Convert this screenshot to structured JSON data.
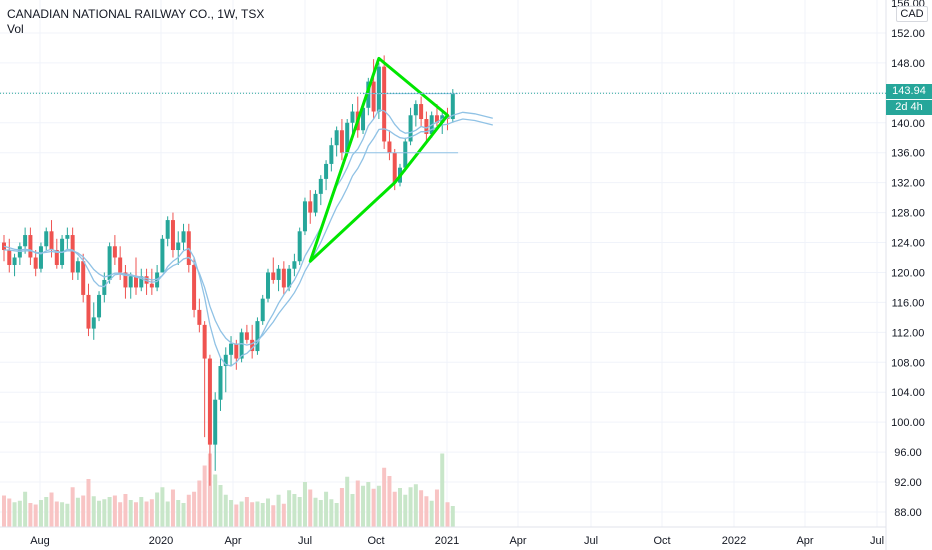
{
  "header": {
    "title": "CANADIAN NATIONAL RAILWAY CO., 1W, TSX",
    "volume_label": "Vol"
  },
  "price_scale": {
    "currency": "CAD",
    "last_price_label": "143.94",
    "countdown_label": "2d 4h",
    "top_label": "156.00"
  },
  "colors": {
    "up": "#26a69a",
    "down": "#ef5350",
    "vol_up": "#c8e6c9",
    "vol_down": "#f8c4c4",
    "ma": "#90c2e5",
    "pattern": "#00e600",
    "grid": "#f0f3fa",
    "price_line": "#26a69a"
  },
  "chart_data": {
    "type": "candlestick",
    "title": "CANADIAN NATIONAL RAILWAY CO., 1W, TSX",
    "y_axis": {
      "ticks": [
        "88.00",
        "92.00",
        "96.00",
        "100.00",
        "104.00",
        "108.00",
        "112.00",
        "116.00",
        "120.00",
        "124.00",
        "128.00",
        "132.00",
        "136.00",
        "140.00",
        "144.00",
        "148.00",
        "152.00"
      ],
      "range": [
        87,
        157
      ]
    },
    "x_axis": {
      "ticks": [
        "Aug",
        "2020",
        "Apr",
        "Jul",
        "Oct",
        "2021",
        "Apr",
        "Jul",
        "Oct",
        "2022",
        "Apr",
        "Jul"
      ]
    },
    "ohlc": [
      [
        124.0,
        125.0,
        121.5,
        123.0
      ],
      [
        123.0,
        124.5,
        120.0,
        121.0
      ],
      [
        121.0,
        122.5,
        119.5,
        122.0
      ],
      [
        122.0,
        124.0,
        121.0,
        123.5
      ],
      [
        123.5,
        126.0,
        122.5,
        125.0
      ],
      [
        125.0,
        126.0,
        121.0,
        122.0
      ],
      [
        122.0,
        123.0,
        119.5,
        120.5
      ],
      [
        120.5,
        124.0,
        120.0,
        123.5
      ],
      [
        123.5,
        126.0,
        123.0,
        125.5
      ],
      [
        125.5,
        127.0,
        122.0,
        123.0
      ],
      [
        123.0,
        124.5,
        120.5,
        121.0
      ],
      [
        121.0,
        125.0,
        120.5,
        124.5
      ],
      [
        124.5,
        126.0,
        123.0,
        125.0
      ],
      [
        125.0,
        126.0,
        119.0,
        120.0
      ],
      [
        120.0,
        122.0,
        119.0,
        121.5
      ],
      [
        121.5,
        122.5,
        116.0,
        117.0
      ],
      [
        117.0,
        118.5,
        111.5,
        112.5
      ],
      [
        112.5,
        116.0,
        111.0,
        114.0
      ],
      [
        114.0,
        117.5,
        113.5,
        117.0
      ],
      [
        117.0,
        120.0,
        116.0,
        119.0
      ],
      [
        119.0,
        124.0,
        118.5,
        123.5
      ],
      [
        123.5,
        125.0,
        121.0,
        122.0
      ],
      [
        122.0,
        123.5,
        119.0,
        120.0
      ],
      [
        120.0,
        121.0,
        116.5,
        118.0
      ],
      [
        118.0,
        120.0,
        116.5,
        119.5
      ],
      [
        119.5,
        122.0,
        117.0,
        118.0
      ],
      [
        118.0,
        120.5,
        117.5,
        119.5
      ],
      [
        119.5,
        120.5,
        117.0,
        118.5
      ],
      [
        118.5,
        120.5,
        117.0,
        118.0
      ],
      [
        118.0,
        121.0,
        117.5,
        120.0
      ],
      [
        120.0,
        125.0,
        120.0,
        124.5
      ],
      [
        124.5,
        127.5,
        123.5,
        127.0
      ],
      [
        127.0,
        128.0,
        122.0,
        123.0
      ],
      [
        123.0,
        125.5,
        121.0,
        124.0
      ],
      [
        124.0,
        126.5,
        123.0,
        125.5
      ],
      [
        125.5,
        126.5,
        120.0,
        121.0
      ],
      [
        121.0,
        122.0,
        114.0,
        115.0
      ],
      [
        115.0,
        116.5,
        112.0,
        113.0
      ],
      [
        113.0,
        113.5,
        98.0,
        108.5
      ],
      [
        108.5,
        109.0,
        91.5,
        97.0
      ],
      [
        97.0,
        104.0,
        93.5,
        103.0
      ],
      [
        103.0,
        108.5,
        101.5,
        107.5
      ],
      [
        107.5,
        110.0,
        104.0,
        109.0
      ],
      [
        109.0,
        111.5,
        107.5,
        110.5
      ],
      [
        110.5,
        111.0,
        107.0,
        108.5
      ],
      [
        108.5,
        112.5,
        108.0,
        112.0
      ],
      [
        112.0,
        113.0,
        110.5,
        111.0
      ],
      [
        111.0,
        113.0,
        108.5,
        109.5
      ],
      [
        109.5,
        114.0,
        109.0,
        113.5
      ],
      [
        113.5,
        117.0,
        113.0,
        116.5
      ],
      [
        116.5,
        120.5,
        116.0,
        120.0
      ],
      [
        120.0,
        122.0,
        118.5,
        119.0
      ],
      [
        119.0,
        121.0,
        117.5,
        120.5
      ],
      [
        120.5,
        121.5,
        117.0,
        118.0
      ],
      [
        118.0,
        121.0,
        117.5,
        120.5
      ],
      [
        120.5,
        122.5,
        119.5,
        121.5
      ],
      [
        121.5,
        126.0,
        121.0,
        125.5
      ],
      [
        125.5,
        130.0,
        125.0,
        129.5
      ],
      [
        129.5,
        131.0,
        126.5,
        128.0
      ],
      [
        128.0,
        131.0,
        127.5,
        130.5
      ],
      [
        130.5,
        133.0,
        129.0,
        132.5
      ],
      [
        132.5,
        135.0,
        131.0,
        134.5
      ],
      [
        134.5,
        138.0,
        133.5,
        137.0
      ],
      [
        137.0,
        139.5,
        135.5,
        139.0
      ],
      [
        139.0,
        140.5,
        135.0,
        136.0
      ],
      [
        136.0,
        140.5,
        135.5,
        140.0
      ],
      [
        140.0,
        142.5,
        138.5,
        141.5
      ],
      [
        141.5,
        143.5,
        138.0,
        139.0
      ],
      [
        139.0,
        142.5,
        138.5,
        142.0
      ],
      [
        142.0,
        146.0,
        141.0,
        145.5
      ],
      [
        145.5,
        148.5,
        140.5,
        141.5
      ],
      [
        141.5,
        148.0,
        140.5,
        147.5
      ],
      [
        147.5,
        149.0,
        136.5,
        137.5
      ],
      [
        137.5,
        139.0,
        135.0,
        136.0
      ],
      [
        136.0,
        136.5,
        131.0,
        132.0
      ],
      [
        132.0,
        134.5,
        131.5,
        134.0
      ],
      [
        134.0,
        138.0,
        133.5,
        137.5
      ],
      [
        137.5,
        142.0,
        137.0,
        141.0
      ],
      [
        141.0,
        143.0,
        139.5,
        142.5
      ],
      [
        142.5,
        143.5,
        139.5,
        140.5
      ],
      [
        140.5,
        141.5,
        137.5,
        138.5
      ],
      [
        138.5,
        141.5,
        138.0,
        141.0
      ],
      [
        141.0,
        142.5,
        139.5,
        140.0
      ],
      [
        140.0,
        141.5,
        138.5,
        141.0
      ],
      [
        141.0,
        142.0,
        139.0,
        140.5
      ],
      [
        140.5,
        144.5,
        140.0,
        143.94
      ]
    ],
    "ma_series": [
      {
        "values": [
          123.5,
          123.3,
          123.1,
          123.0,
          123.1,
          123.0,
          122.6,
          122.5,
          122.9,
          123.1,
          122.8,
          122.7,
          123.1,
          123.0,
          122.4,
          121.6,
          120.3,
          118.9,
          118.2,
          118.1,
          119.0,
          119.7,
          119.8,
          119.6,
          119.6,
          119.4,
          119.2,
          118.9,
          118.7,
          118.8,
          119.6,
          120.8,
          121.5,
          122.0,
          122.9,
          123.2,
          122.0,
          119.6,
          116.7,
          113.0,
          110.4,
          108.6,
          107.7,
          107.5,
          108.0,
          108.9,
          109.2,
          109.9,
          110.6,
          111.9,
          113.3,
          114.5,
          115.9,
          117.0,
          118.0,
          119.0,
          120.4,
          122.2,
          123.4,
          124.7,
          126.0,
          127.8,
          129.7,
          131.5,
          132.6,
          134.0,
          135.7,
          136.5,
          137.8,
          139.6,
          140.5,
          141.7,
          141.6,
          140.9,
          139.8,
          139.0,
          138.6,
          138.7,
          139.0,
          139.5,
          139.3,
          139.7,
          140.1,
          140.5,
          140.6,
          141.0
        ]
      },
      {
        "values": [
          123.0,
          123.0,
          122.9,
          122.8,
          122.9,
          122.9,
          122.7,
          122.6,
          122.7,
          122.8,
          122.7,
          122.7,
          122.9,
          122.9,
          122.6,
          122.1,
          121.3,
          120.4,
          119.8,
          119.4,
          119.6,
          119.9,
          119.9,
          119.8,
          119.7,
          119.5,
          119.4,
          119.2,
          119.0,
          119.1,
          119.6,
          120.4,
          120.9,
          121.2,
          121.8,
          122.0,
          121.3,
          119.9,
          118.0,
          115.5,
          113.6,
          112.2,
          111.2,
          110.6,
          110.4,
          110.5,
          110.3,
          110.5,
          110.9,
          111.6,
          112.5,
          113.4,
          114.5,
          115.4,
          116.3,
          117.3,
          118.6,
          120.2,
          121.4,
          122.7,
          124.0,
          125.6,
          127.2,
          128.7,
          129.9,
          131.3,
          132.9,
          133.9,
          135.2,
          136.9,
          137.9,
          139.1,
          139.2,
          138.9,
          138.4,
          138.0,
          137.9,
          138.1,
          138.4,
          138.8,
          138.8,
          139.1,
          139.4,
          139.7,
          139.8,
          140.1
        ]
      }
    ],
    "volume_rel": [
      0.42,
      0.38,
      0.33,
      0.35,
      0.47,
      0.32,
      0.3,
      0.36,
      0.4,
      0.46,
      0.34,
      0.33,
      0.31,
      0.53,
      0.39,
      0.42,
      0.64,
      0.41,
      0.35,
      0.37,
      0.4,
      0.42,
      0.33,
      0.44,
      0.36,
      0.33,
      0.4,
      0.34,
      0.37,
      0.46,
      0.53,
      0.34,
      0.5,
      0.36,
      0.32,
      0.43,
      0.47,
      0.62,
      0.82,
      0.98,
      0.7,
      0.56,
      0.43,
      0.36,
      0.3,
      0.34,
      0.4,
      0.33,
      0.34,
      0.32,
      0.38,
      0.29,
      0.43,
      0.31,
      0.49,
      0.44,
      0.4,
      0.6,
      0.5,
      0.39,
      0.36,
      0.47,
      0.37,
      0.32,
      0.52,
      0.67,
      0.44,
      0.62,
      0.55,
      0.6,
      0.51,
      0.55,
      0.79,
      0.68,
      0.47,
      0.52,
      0.43,
      0.53,
      0.57,
      0.49,
      0.41,
      0.35,
      0.5,
      0.98,
      0.33,
      0.28
    ]
  }
}
